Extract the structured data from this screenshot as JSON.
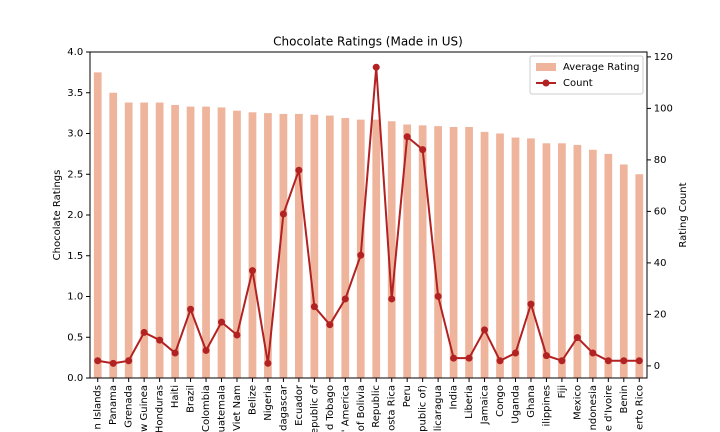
{
  "chart_data": {
    "type": "bar",
    "title": "Chocolate Ratings (Made in US)",
    "ylabel": "Chocolate Ratings",
    "y2label": "Rating Count",
    "categories": [
      "n Islands",
      "Panama",
      "Grenada",
      "w Guinea",
      "Honduras",
      "Haiti",
      "Brazil",
      "Colombia",
      "uatemala",
      "Viet Nam",
      "Belize",
      "Nigeria",
      "dagascar",
      "Ecuador",
      "epublic of",
      "d Tobago",
      "' America",
      "of Bolivia",
      "Republic",
      "osta Rica",
      "Peru",
      "public of)",
      "licaragua",
      "India",
      "Liberia",
      "Jamaica",
      "Congo",
      "Uganda",
      "Ghana",
      "ilippines",
      "Fiji",
      "Mexico",
      "ndonesia",
      "e d'Ivoire",
      "Benin",
      "erto Rico"
    ],
    "series": [
      {
        "name": "Average Rating",
        "type": "bar",
        "color": "#efb49c",
        "values": [
          3.75,
          3.5,
          3.38,
          3.38,
          3.38,
          3.35,
          3.33,
          3.33,
          3.32,
          3.28,
          3.26,
          3.25,
          3.24,
          3.24,
          3.23,
          3.22,
          3.19,
          3.17,
          3.17,
          3.15,
          3.11,
          3.1,
          3.09,
          3.08,
          3.08,
          3.02,
          3.0,
          2.95,
          2.94,
          2.88,
          2.88,
          2.86,
          2.8,
          2.75,
          2.62,
          2.5
        ]
      },
      {
        "name": "Count",
        "type": "line",
        "axis": "y2",
        "color": "#b22222",
        "values": [
          2,
          1,
          2,
          13,
          10,
          5,
          22,
          6,
          17,
          12,
          37,
          1,
          59,
          76,
          23,
          16,
          26,
          43,
          116,
          26,
          89,
          84,
          27,
          3,
          3,
          14,
          2,
          5,
          24,
          4,
          2,
          11,
          5,
          2,
          2,
          2
        ]
      }
    ],
    "ylim": [
      0,
      4
    ],
    "yticks": [
      {
        "value": 0,
        "label": "0.0"
      },
      0.5,
      {
        "value": 1,
        "label": "1.0"
      },
      1.5,
      {
        "value": 2,
        "label": "2.0"
      },
      2.5,
      {
        "value": 3,
        "label": "3.0"
      },
      3.5,
      {
        "value": 4,
        "label": "4.0"
      }
    ],
    "y2lim": [
      -4.7,
      121.9
    ],
    "y2ticks": [
      0,
      20,
      40,
      60,
      80,
      100,
      120
    ],
    "legend": "upper right"
  }
}
